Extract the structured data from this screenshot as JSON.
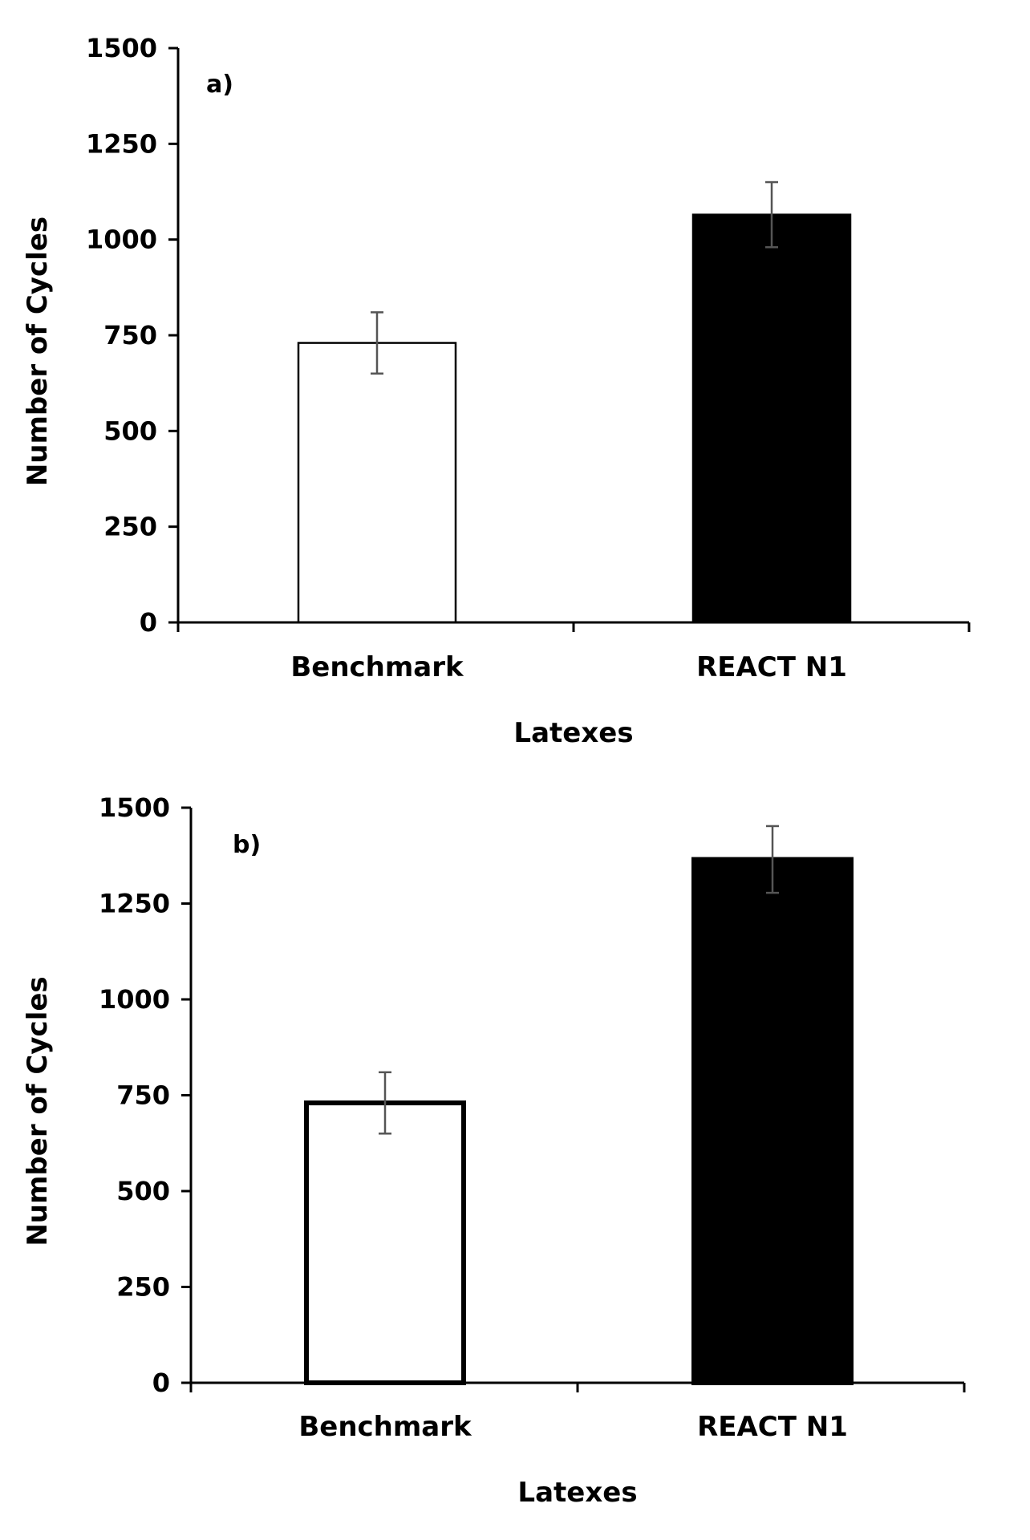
{
  "chart_data": [
    {
      "type": "bar",
      "panel_label": "a)",
      "categories": [
        "Benchmark",
        "REACT N1"
      ],
      "values": [
        730,
        1065
      ],
      "error": [
        80,
        85
      ],
      "fill_colors": [
        "#ffffff",
        "#000000"
      ],
      "xlabel": "Latexes",
      "ylabel": "Number of Cycles",
      "ylim": [
        0,
        1500
      ],
      "yticks": [
        0,
        250,
        500,
        750,
        1000,
        1250,
        1500
      ],
      "grid": false,
      "legend": "none"
    },
    {
      "type": "bar",
      "panel_label": "b)",
      "categories": [
        "Benchmark",
        "REACT N1"
      ],
      "values": [
        730,
        1365
      ],
      "error": [
        80,
        87
      ],
      "fill_colors": [
        "#ffffff",
        "#000000"
      ],
      "xlabel": "Latexes",
      "ylabel": "Number of Cycles",
      "ylim": [
        0,
        1500
      ],
      "yticks": [
        0,
        250,
        500,
        750,
        1000,
        1250,
        1500
      ],
      "grid": false,
      "legend": "none"
    }
  ],
  "colors": {
    "axis": "#000000",
    "error_bar": "#555555",
    "text": "#000000"
  }
}
